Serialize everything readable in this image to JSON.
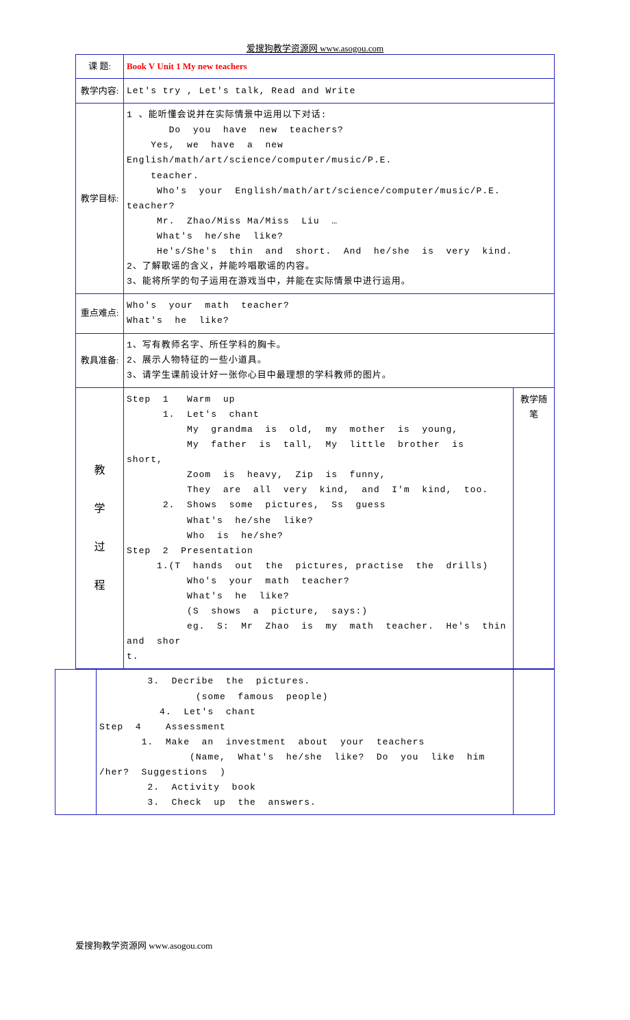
{
  "header": "爱搜狗教学资源网  www.asogou.com",
  "footer": "爱搜狗教学资源网    www.asogou.com",
  "colors": {
    "border": "#2020c0",
    "title": "#ff0000",
    "text": "#000000",
    "background": "#ffffff"
  },
  "rows": {
    "title": {
      "label": "课  题:",
      "value": "Book V Unit 1  My new teachers"
    },
    "content": {
      "label": "教学内容:",
      "value": "Let's  try  ,   Let's  talk,   Read  and  Write"
    },
    "objectives": {
      "label": "教学目标:",
      "lines": [
        "1 、能听懂会说并在实际情景中运用以下对话:",
        "       Do  you  have  new  teachers?",
        "    Yes,  we  have  a  new  English/math/art/science/computer/music/P.E.",
        "    teacher.",
        "     Who's  your  English/math/art/science/computer/music/P.E.  teacher?",
        "     Mr.  Zhao/Miss Ma/Miss  Liu  …",
        "     What's  he/she  like?",
        "     He's/She's  thin  and  short.  And  he/she  is  very  kind.",
        "2、了解歌谣的含义，并能吟唱歌谣的内容。",
        "3、能将所学的句子运用在游戏当中，并能在实际情景中进行运用。"
      ]
    },
    "keypoints": {
      "label": "重点难点:",
      "lines": [
        "Who's  your  math  teacher?",
        "What's  he  like?"
      ]
    },
    "prep": {
      "label": "教具准备:",
      "lines": [
        "1、写有教师名字、所任学科的胸卡。",
        "2、展示人物特征的一些小道具。",
        "3、请学生课前设计好一张你心目中最理想的学科教师的图片。"
      ]
    },
    "process": {
      "label_chars": [
        "教",
        "学",
        "过",
        "程"
      ],
      "notes_label": "教学随笔",
      "lines": [
        "Step  1   Warm  up",
        "      1.  Let's  chant",
        "          My  grandma  is  old,  my  mother  is  young,",
        "          My  father  is  tall,  My  little  brother  is  short,",
        "          Zoom  is  heavy,  Zip  is  funny,",
        "          They  are  all  very  kind,  and  I'm  kind,  too.",
        "      2.  Shows  some  pictures,  Ss  guess",
        "          What's  he/she  like?",
        "          Who  is  he/she?",
        "Step  2  Presentation",
        "     1.(T  hands  out  the  pictures, practise  the  drills)",
        "          Who's  your  math  teacher?",
        "          What's  he  like?",
        "          (S  shows  a  picture,  says:)",
        "          eg.  S:  Mr  Zhao  is  my  math  teacher.  He's  thin  and  shor",
        "t."
      ]
    },
    "continuation": {
      "lines": [
        "        3.  Decribe  the  pictures.",
        "                (some  famous  people)",
        "          4.  Let's  chant",
        "Step  4    Assessment",
        "       1.  Make  an  investment  about  your  teachers",
        "               (Name,  What's  he/she  like?  Do  you  like  him",
        "/her?  Suggestions  )",
        "        2.  Activity  book",
        "        3.  Check  up  the  answers."
      ]
    }
  }
}
